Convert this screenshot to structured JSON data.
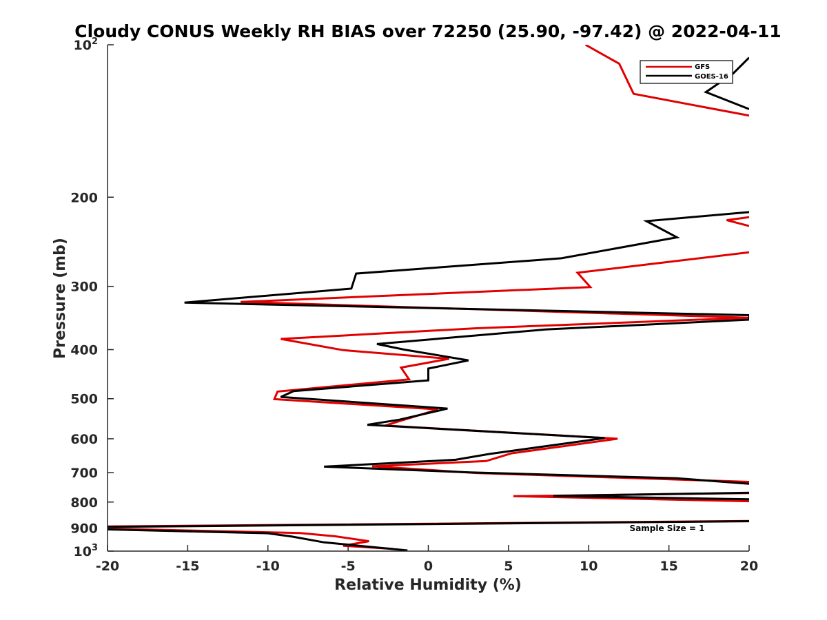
{
  "chart_data": {
    "type": "line",
    "title": "Cloudy CONUS Weekly RH BIAS over 72250 (25.90, -97.42) @ 2022-04-11",
    "xlabel": "Relative Humidity (%)",
    "ylabel": "Pressure (mb)",
    "xlim": [
      -20,
      20
    ],
    "ylim": [
      100,
      1000
    ],
    "y_scale": "log",
    "y_reversed": true,
    "x_ticks": [
      -20,
      -15,
      -10,
      -5,
      0,
      5,
      10,
      15,
      20
    ],
    "y_ticks": [
      {
        "value": 100,
        "base": "10",
        "exp": "2"
      },
      {
        "value": 200,
        "label": "200"
      },
      {
        "value": 300,
        "label": "300"
      },
      {
        "value": 400,
        "label": "400"
      },
      {
        "value": 500,
        "label": "500"
      },
      {
        "value": 600,
        "label": "600"
      },
      {
        "value": 700,
        "label": "700"
      },
      {
        "value": 800,
        "label": "800"
      },
      {
        "value": 900,
        "label": "900"
      },
      {
        "value": 1000,
        "base": "10",
        "exp": "3"
      }
    ],
    "legend_position": "top-right",
    "annotation": "Sample Size = 1",
    "grid": false,
    "series": [
      {
        "name": "GFS",
        "color": "#e00000",
        "points": [
          [
            9.8,
            100
          ],
          [
            11.9,
            109
          ],
          [
            12.8,
            125
          ],
          [
            20,
            138
          ],
          [
            null,
            null
          ],
          [
            20,
            219
          ],
          [
            18.6,
            222
          ],
          [
            20,
            228
          ],
          [
            null,
            null
          ],
          [
            20,
            257
          ],
          [
            9.3,
            282
          ],
          [
            10.1,
            301
          ],
          [
            -11.7,
            322
          ],
          [
            20,
            346
          ],
          [
            3.0,
            363
          ],
          [
            -9.2,
            381
          ],
          [
            -5.3,
            401
          ],
          [
            1.3,
            417
          ],
          [
            -1.7,
            434
          ],
          [
            -1.2,
            458
          ],
          [
            -9.4,
            484
          ],
          [
            -9.6,
            501
          ],
          [
            0.6,
            525
          ],
          [
            -1.9,
            555
          ],
          [
            -2.7,
            565
          ],
          [
            11.8,
            600
          ],
          [
            5.2,
            641
          ],
          [
            3.6,
            664
          ],
          [
            -3.5,
            680
          ],
          [
            3.0,
            701
          ],
          [
            20,
            730
          ],
          [
            null,
            null
          ],
          [
            20,
            768
          ],
          [
            5.3,
            779
          ],
          [
            20,
            797
          ],
          [
            null,
            null
          ],
          [
            20,
            872
          ],
          [
            -20,
            894
          ],
          [
            -20,
            903
          ],
          [
            -8.0,
            921
          ],
          [
            -5.8,
            935
          ],
          [
            -3.7,
            956
          ],
          [
            -5.3,
            976
          ],
          [
            -2.2,
            990
          ]
        ]
      },
      {
        "name": "GOES-16",
        "color": "#000000",
        "points": [
          [
            20,
            106
          ],
          [
            19.0,
            114
          ],
          [
            17.3,
            124
          ],
          [
            20,
            134
          ],
          [
            null,
            null
          ],
          [
            20,
            214
          ],
          [
            13.6,
            223
          ],
          [
            15.5,
            240
          ],
          [
            8.3,
            264
          ],
          [
            -4.5,
            283
          ],
          [
            -4.8,
            303
          ],
          [
            -15.2,
            323
          ],
          [
            20,
            342
          ],
          [
            20,
            349
          ],
          [
            7.3,
            365
          ],
          [
            -3.2,
            390
          ],
          [
            -1.5,
            400
          ],
          [
            2.5,
            420
          ],
          [
            0.0,
            436
          ],
          [
            0.0,
            460
          ],
          [
            -8.4,
            483
          ],
          [
            -9.2,
            496
          ],
          [
            1.2,
            523
          ],
          [
            -1.8,
            550
          ],
          [
            -3.8,
            563
          ],
          [
            11.0,
            598
          ],
          [
            3.8,
            643
          ],
          [
            1.7,
            660
          ],
          [
            -6.5,
            681
          ],
          [
            2.6,
            699
          ],
          [
            15.5,
            718
          ],
          [
            20,
            736
          ],
          [
            null,
            null
          ],
          [
            20,
            767
          ],
          [
            7.8,
            778
          ],
          [
            20,
            790
          ],
          [
            null,
            null
          ],
          [
            20,
            873
          ],
          [
            -20,
            896
          ],
          [
            -20,
            906
          ],
          [
            -10.0,
            922
          ],
          [
            -8.5,
            936
          ],
          [
            -6.5,
            961
          ],
          [
            -1.3,
            997
          ]
        ]
      }
    ]
  }
}
